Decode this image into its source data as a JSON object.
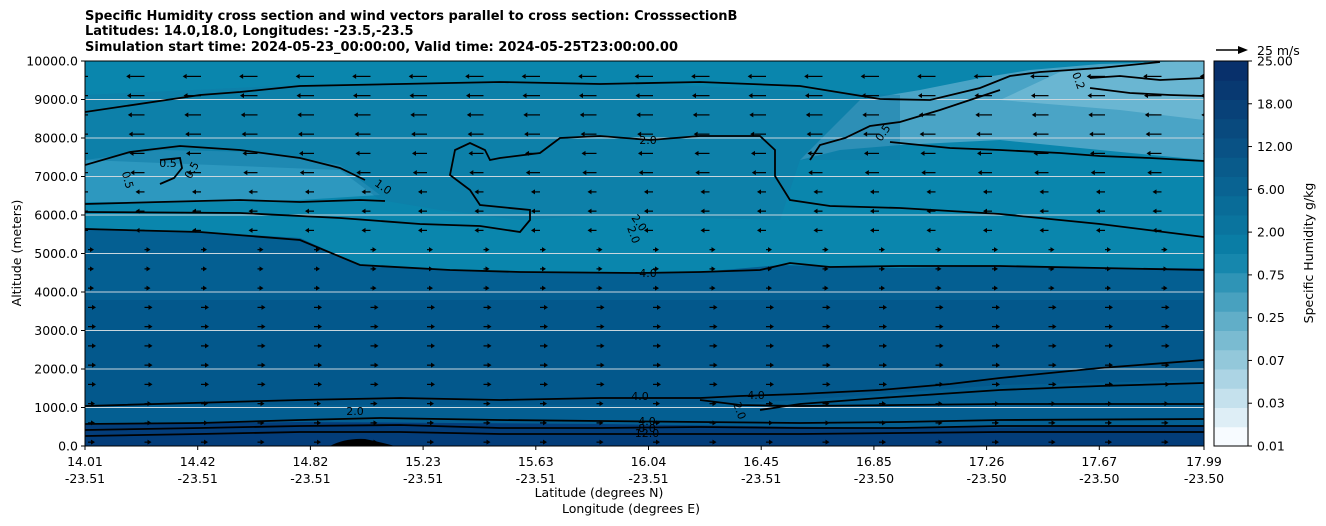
{
  "chart_data": {
    "type": "contourf",
    "title_lines": [
      "Specific Humidity cross section and wind vectors parallel to cross section: CrosssectionB",
      "Latitudes: 14.0,18.0, Longitudes: -23.5,-23.5",
      "Simulation start time: 2024-05-23_00:00:00, Valid time: 2024-05-25T23:00:00.00"
    ],
    "ylabel": "Altitude (meters)",
    "xlabel_line1": "Latitude (degrees N)",
    "xlabel_line2": "Longitude (degrees E)",
    "ylim": [
      0,
      10000
    ],
    "y_ticks": [
      "0.0",
      "1000.0",
      "2000.0",
      "3000.0",
      "4000.0",
      "5000.0",
      "6000.0",
      "7000.0",
      "8000.0",
      "9000.0",
      "10000.0"
    ],
    "x_ticks": [
      {
        "lat": "14.01",
        "lon": "-23.51"
      },
      {
        "lat": "14.42",
        "lon": "-23.51"
      },
      {
        "lat": "14.82",
        "lon": "-23.51"
      },
      {
        "lat": "15.23",
        "lon": "-23.51"
      },
      {
        "lat": "15.63",
        "lon": "-23.51"
      },
      {
        "lat": "16.04",
        "lon": "-23.51"
      },
      {
        "lat": "16.45",
        "lon": "-23.51"
      },
      {
        "lat": "16.85",
        "lon": "-23.50"
      },
      {
        "lat": "17.26",
        "lon": "-23.50"
      },
      {
        "lat": "17.67",
        "lon": "-23.50"
      },
      {
        "lat": "17.99",
        "lon": "-23.50"
      }
    ],
    "colorbar": {
      "label": "Specific Humidity g/kg",
      "tick_labels": [
        "0.01",
        "0.03",
        "0.07",
        "0.25",
        "0.75",
        "2.00",
        "6.00",
        "12.00",
        "18.00",
        "25.00"
      ],
      "levels": 20,
      "color_low": "#f7fbff",
      "color_high": "#08306b"
    },
    "quiver_key_label": "25 m/s",
    "contour_labels": [
      "0.5",
      "0.5",
      "0.5",
      "1.0",
      "2.0",
      "2.0",
      "2.0",
      "0.5",
      "0.2",
      "4.0",
      "4.0",
      "4.0",
      "2.0",
      "4.0",
      "8.0",
      "12.0",
      "2.0"
    ],
    "colors": {
      "deep": "#045a8d",
      "mid": "#0a81a8",
      "light": "#5fb0cc",
      "surface": "#02306b"
    }
  }
}
